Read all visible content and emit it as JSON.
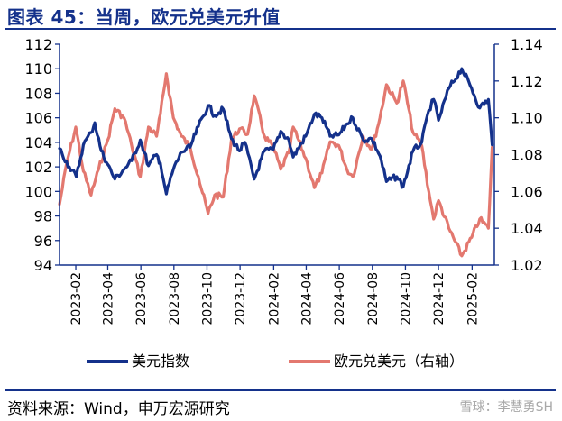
{
  "header": {
    "title": "图表 45：当周，欧元兑美元升值"
  },
  "footer": {
    "source": "资料来源：Wind，申万宏源研究",
    "watermark": "雪球：李慧勇SH"
  },
  "chart_data": {
    "type": "line",
    "title": "图表 45：当周，欧元兑美元升值",
    "x_ticks": [
      "2023-02",
      "2023-04",
      "2023-06",
      "2023-08",
      "2023-10",
      "2023-12",
      "2024-02",
      "2024-04",
      "2024-06",
      "2024-08",
      "2024-10",
      "2024-12",
      "2025-02"
    ],
    "y_left": {
      "min": 94,
      "max": 112,
      "step": 2,
      "ticks": [
        "94",
        "96",
        "98",
        "100",
        "102",
        "104",
        "106",
        "108",
        "110",
        "112"
      ]
    },
    "y_right": {
      "min": 1.02,
      "max": 1.14,
      "step": 0.02,
      "ticks": [
        "1.02",
        "1.04",
        "1.06",
        "1.08",
        "1.10",
        "1.12",
        "1.14"
      ]
    },
    "legend_position": "bottom",
    "x_range": [
      "2023-01-02",
      "2025-03-14"
    ],
    "grid": false,
    "series": [
      {
        "name": "美元指数",
        "axis": "left",
        "color": "#14318b",
        "points": [
          [
            "2023-01-02",
            103.5
          ],
          [
            "2023-01-20",
            102.0
          ],
          [
            "2023-02-02",
            101.2
          ],
          [
            "2023-02-15",
            103.8
          ],
          [
            "2023-03-01",
            104.8
          ],
          [
            "2023-03-08",
            105.6
          ],
          [
            "2023-03-20",
            103.3
          ],
          [
            "2023-04-01",
            102.2
          ],
          [
            "2023-04-14",
            101.0
          ],
          [
            "2023-05-01",
            101.8
          ],
          [
            "2023-05-15",
            102.5
          ],
          [
            "2023-05-31",
            104.2
          ],
          [
            "2023-06-15",
            102.1
          ],
          [
            "2023-06-30",
            103.0
          ],
          [
            "2023-07-07",
            102.3
          ],
          [
            "2023-07-18",
            99.8
          ],
          [
            "2023-07-31",
            101.8
          ],
          [
            "2023-08-15",
            103.2
          ],
          [
            "2023-08-31",
            103.6
          ],
          [
            "2023-09-15",
            105.3
          ],
          [
            "2023-10-03",
            107.0
          ],
          [
            "2023-10-15",
            106.2
          ],
          [
            "2023-10-31",
            106.7
          ],
          [
            "2023-11-15",
            104.3
          ],
          [
            "2023-11-30",
            103.3
          ],
          [
            "2023-12-10",
            104.0
          ],
          [
            "2023-12-27",
            101.0
          ],
          [
            "2024-01-15",
            103.3
          ],
          [
            "2024-01-31",
            103.4
          ],
          [
            "2024-02-14",
            104.9
          ],
          [
            "2024-02-29",
            104.2
          ],
          [
            "2024-03-08",
            102.8
          ],
          [
            "2024-03-31",
            104.5
          ],
          [
            "2024-04-16",
            106.3
          ],
          [
            "2024-04-30",
            106.0
          ],
          [
            "2024-05-15",
            104.5
          ],
          [
            "2024-05-31",
            104.6
          ],
          [
            "2024-06-15",
            105.5
          ],
          [
            "2024-06-26",
            106.0
          ],
          [
            "2024-07-15",
            104.2
          ],
          [
            "2024-07-31",
            104.3
          ],
          [
            "2024-08-15",
            102.9
          ],
          [
            "2024-08-27",
            100.8
          ],
          [
            "2024-09-15",
            101.2
          ],
          [
            "2024-09-27",
            100.4
          ],
          [
            "2024-10-15",
            103.3
          ],
          [
            "2024-10-31",
            104.0
          ],
          [
            "2024-11-13",
            106.6
          ],
          [
            "2024-11-22",
            107.5
          ],
          [
            "2024-12-01",
            105.8
          ],
          [
            "2024-12-20",
            108.4
          ],
          [
            "2025-01-13",
            110.0
          ],
          [
            "2025-01-31",
            108.4
          ],
          [
            "2025-02-15",
            106.8
          ],
          [
            "2025-03-03",
            107.5
          ],
          [
            "2025-03-10",
            103.8
          ]
        ]
      },
      {
        "name": "欧元兑美元（右轴）",
        "axis": "right",
        "color": "#e3786f",
        "points": [
          [
            "2023-01-02",
            1.053
          ],
          [
            "2023-01-15",
            1.075
          ],
          [
            "2023-02-01",
            1.095
          ],
          [
            "2023-02-15",
            1.071
          ],
          [
            "2023-03-01",
            1.058
          ],
          [
            "2023-03-15",
            1.072
          ],
          [
            "2023-04-01",
            1.088
          ],
          [
            "2023-04-14",
            1.105
          ],
          [
            "2023-05-01",
            1.1
          ],
          [
            "2023-05-15",
            1.085
          ],
          [
            "2023-05-31",
            1.068
          ],
          [
            "2023-06-15",
            1.095
          ],
          [
            "2023-06-30",
            1.09
          ],
          [
            "2023-07-07",
            1.102
          ],
          [
            "2023-07-18",
            1.124
          ],
          [
            "2023-07-31",
            1.1
          ],
          [
            "2023-08-15",
            1.09
          ],
          [
            "2023-08-31",
            1.084
          ],
          [
            "2023-09-15",
            1.068
          ],
          [
            "2023-10-03",
            1.048
          ],
          [
            "2023-10-15",
            1.058
          ],
          [
            "2023-10-31",
            1.057
          ],
          [
            "2023-11-15",
            1.088
          ],
          [
            "2023-11-30",
            1.094
          ],
          [
            "2023-12-15",
            1.091
          ],
          [
            "2023-12-27",
            1.112
          ],
          [
            "2024-01-15",
            1.09
          ],
          [
            "2024-01-31",
            1.084
          ],
          [
            "2024-02-14",
            1.072
          ],
          [
            "2024-02-29",
            1.081
          ],
          [
            "2024-03-08",
            1.095
          ],
          [
            "2024-03-31",
            1.078
          ],
          [
            "2024-04-16",
            1.062
          ],
          [
            "2024-04-30",
            1.07
          ],
          [
            "2024-05-15",
            1.087
          ],
          [
            "2024-05-31",
            1.085
          ],
          [
            "2024-06-15",
            1.072
          ],
          [
            "2024-06-26",
            1.068
          ],
          [
            "2024-07-15",
            1.09
          ],
          [
            "2024-07-31",
            1.083
          ],
          [
            "2024-08-15",
            1.1
          ],
          [
            "2024-08-27",
            1.118
          ],
          [
            "2024-09-15",
            1.108
          ],
          [
            "2024-09-27",
            1.12
          ],
          [
            "2024-10-15",
            1.092
          ],
          [
            "2024-10-31",
            1.085
          ],
          [
            "2024-11-13",
            1.06
          ],
          [
            "2024-11-22",
            1.045
          ],
          [
            "2024-12-01",
            1.055
          ],
          [
            "2024-12-20",
            1.04
          ],
          [
            "2025-01-13",
            1.025
          ],
          [
            "2025-01-31",
            1.035
          ],
          [
            "2025-02-15",
            1.045
          ],
          [
            "2025-03-03",
            1.04
          ],
          [
            "2025-03-10",
            1.084
          ]
        ]
      }
    ]
  }
}
